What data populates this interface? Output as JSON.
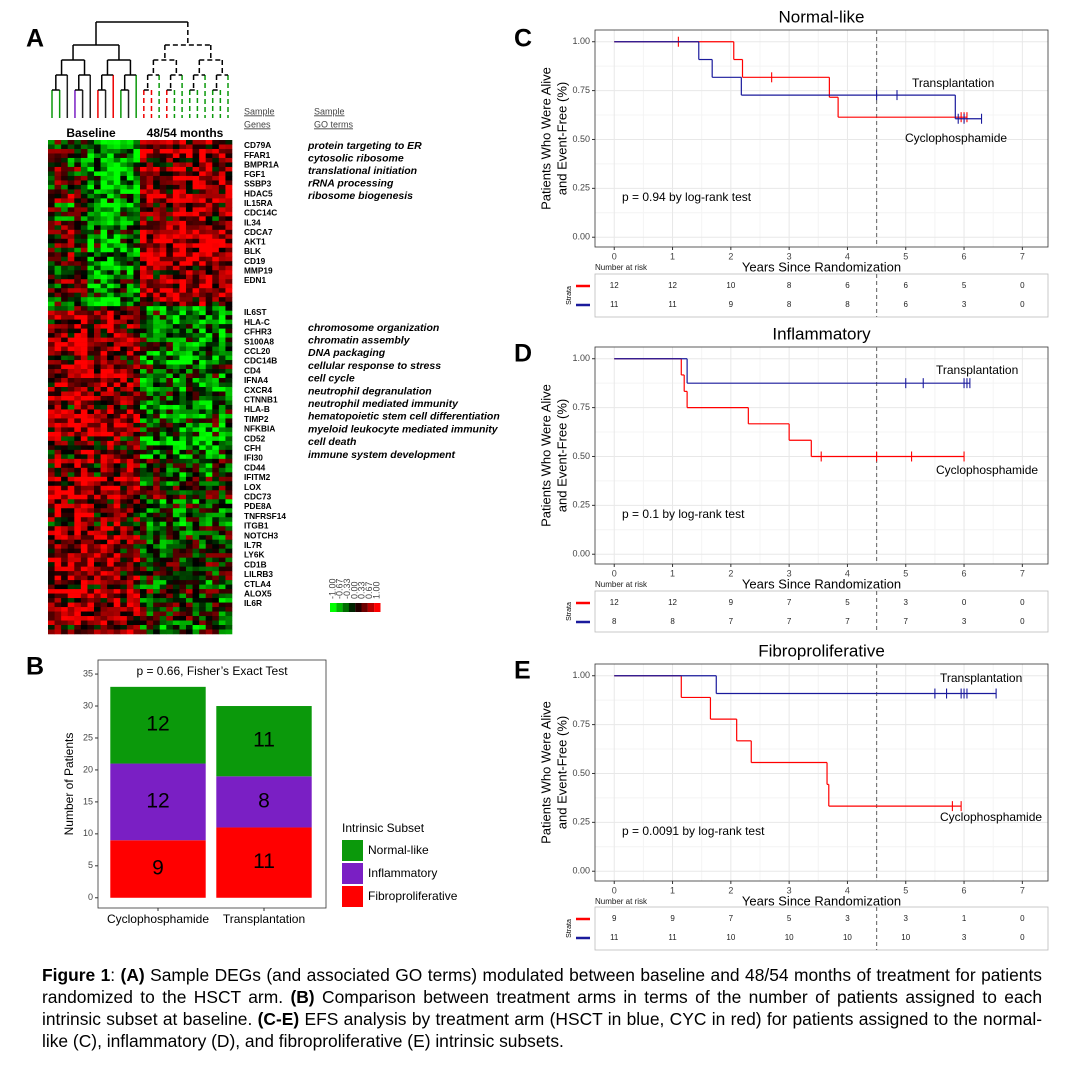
{
  "panel_labels": [
    "A",
    "B",
    "C",
    "D",
    "E"
  ],
  "heatmap": {
    "column_groups": [
      "Baseline",
      "48/54 months"
    ],
    "gene_header": [
      "Sample",
      "Genes"
    ],
    "go_header": [
      "Sample",
      "GO terms"
    ],
    "genes_top": [
      "CD79A",
      "FFAR1",
      "BMPR1A",
      "FGF1",
      "SSBP3",
      "HDAC5",
      "IL15RA",
      "CDC14C",
      "IL34",
      "CDCA7",
      "AKT1",
      "BLK",
      "CD19",
      "MMP19",
      "EDN1"
    ],
    "genes_bottom": [
      "IL6ST",
      "HLA-C",
      "CFHR3",
      "S100A8",
      "CCL20",
      "CDC14B",
      "CD4",
      "IFNA4",
      "CXCR4",
      "CTNNB1",
      "HLA-B",
      "TIMP2",
      "NFKBIA",
      "CD52",
      "CFH",
      "IFI30",
      "CD44",
      "IFITM2",
      "LOX",
      "CDC73",
      "PDE8A",
      "TNFRSF14",
      "ITGB1",
      "NOTCH3",
      "IL7R",
      "LY6K",
      "CD1B",
      "LILRB3",
      "CTLA4",
      "ALOX5",
      "IL6R"
    ],
    "go_top": [
      "protein targeting to ER",
      "cytosolic ribosome",
      "translational initiation",
      "rRNA processing",
      "ribosome biogenesis"
    ],
    "go_bottom": [
      "chromosome organization",
      "chromatin assembly",
      "DNA packaging",
      "cellular response to stress",
      "cell cycle",
      "neutrophil degranulation",
      "neutrophil mediated immunity",
      "hematopoietic stem cell differentiation",
      "myeloid leukocyte mediated immunity",
      "cell death",
      "immune system development"
    ],
    "color_key_ticks": [
      {
        "value": -1,
        "label": "-1.00"
      },
      {
        "value": -0.67,
        "label": "-0.67"
      },
      {
        "value": -0.33,
        "label": "-0.33"
      },
      {
        "value": 0,
        "label": "0.00"
      },
      {
        "value": 0.33,
        "label": "0.33"
      },
      {
        "value": 0.67,
        "label": "0.67"
      },
      {
        "value": 1,
        "label": "1.00"
      }
    ]
  },
  "chart_data": [
    {
      "type": "bar",
      "stacked": true,
      "title": "p = 0.66, Fisher’s Exact Test",
      "categories": [
        "Cyclophosphamide",
        "Transplantation"
      ],
      "series": [
        {
          "name": "Fibroproliferative",
          "color": "#ff0000",
          "values": [
            9,
            11
          ]
        },
        {
          "name": "Inflammatory",
          "color": "#7a1fc4",
          "values": [
            12,
            8
          ]
        },
        {
          "name": "Normal-like",
          "color": "#0b990b",
          "values": [
            12,
            11
          ]
        }
      ],
      "ylabel": "Number of Patients",
      "legend_title": "Intrinsic Subset",
      "ylim": [
        -1.6,
        37.2
      ],
      "yticks": [
        0,
        5,
        10,
        15,
        20,
        25,
        30,
        35
      ]
    },
    {
      "type": "survival",
      "title": "Normal-like",
      "xlabel": "Years Since Randomization",
      "ylabel": [
        "Patients Who Were Alive",
        "and Event-Free (%)"
      ],
      "annotation": "p = 0.94 by log-rank test",
      "xlim": [
        -0.33,
        7.44
      ],
      "ylim": [
        -0.05,
        1.06
      ],
      "xticks": [
        0,
        1,
        2,
        3,
        4,
        5,
        6,
        7
      ],
      "yticks": [
        {
          "value": 0,
          "label": "0.00"
        },
        {
          "value": 0.25,
          "label": "0.25"
        },
        {
          "value": 0.5,
          "label": "0.50"
        },
        {
          "value": 0.75,
          "label": "0.75"
        },
        {
          "value": 1,
          "label": "1.00"
        }
      ],
      "grid": true,
      "vline": 4.5,
      "series": [
        {
          "name": "Cyclophosphamide",
          "color": "#ff0000",
          "x": [
            0,
            2.05,
            2.2,
            3.69,
            3.84
          ],
          "values": [
            1,
            0.909,
            0.818,
            0.716,
            0.614
          ],
          "censor_x": [
            1.1,
            2.7,
            5.95,
            6.0,
            6.05
          ],
          "censor_values": [
            1,
            0.818,
            0.614,
            0.614,
            0.614
          ]
        },
        {
          "name": "Transplantation",
          "color": "#1a1a9c",
          "x": [
            0,
            1.45,
            1.68,
            2.18,
            5.85
          ],
          "values": [
            1,
            0.909,
            0.818,
            0.727,
            0.606
          ],
          "censor_x": [
            4.5,
            4.85,
            5.9,
            6.0,
            6.3
          ],
          "censor_values": [
            0.727,
            0.727,
            0.606,
            0.606,
            0.606
          ]
        }
      ],
      "risk_table": {
        "title": "Number at risk",
        "ylabel": "Strata",
        "rows": [
          [
            12,
            12,
            10,
            8,
            6,
            6,
            5,
            0
          ],
          [
            11,
            11,
            9,
            8,
            8,
            6,
            3,
            0
          ]
        ]
      }
    },
    {
      "type": "survival",
      "title": "Inflammatory",
      "xlabel": "Years Since Randomization",
      "ylabel": [
        "Patients Who Were Alive",
        "and Event-Free (%)"
      ],
      "annotation": "p = 0.1 by log-rank test",
      "xlim": [
        -0.33,
        7.44
      ],
      "ylim": [
        -0.05,
        1.06
      ],
      "xticks": [
        0,
        1,
        2,
        3,
        4,
        5,
        6,
        7
      ],
      "yticks": [
        {
          "value": 0,
          "label": "0.00"
        },
        {
          "value": 0.25,
          "label": "0.25"
        },
        {
          "value": 0.5,
          "label": "0.50"
        },
        {
          "value": 0.75,
          "label": "0.75"
        },
        {
          "value": 1,
          "label": "1.00"
        }
      ],
      "grid": true,
      "vline": 4.5,
      "series": [
        {
          "name": "Cyclophosphamide",
          "color": "#ff0000",
          "x": [
            0,
            1.15,
            1.2,
            1.25,
            2.3,
            3.0,
            3.38
          ],
          "values": [
            1,
            0.917,
            0.833,
            0.75,
            0.667,
            0.583,
            0.5
          ],
          "censor_x": [
            3.55,
            4.5,
            5.1,
            6.0
          ],
          "censor_values": [
            0.5,
            0.5,
            0.5,
            0.5
          ]
        },
        {
          "name": "Transplantation",
          "color": "#1a1a9c",
          "x": [
            0,
            1.25
          ],
          "values": [
            1,
            0.875
          ],
          "censor_x": [
            5.0,
            5.3,
            6.0,
            6.05,
            6.1
          ],
          "censor_values": [
            0.875,
            0.875,
            0.875,
            0.875,
            0.875
          ]
        }
      ],
      "risk_table": {
        "title": "Number at risk",
        "ylabel": "Strata",
        "rows": [
          [
            12,
            12,
            9,
            7,
            5,
            3,
            0,
            0
          ],
          [
            8,
            8,
            7,
            7,
            7,
            7,
            3,
            0
          ]
        ]
      }
    },
    {
      "type": "survival",
      "title": "Fibroproliferative",
      "xlabel": "Years Since Randomization",
      "ylabel": [
        "Patients Who Were Alive",
        "and Event-Free (%)"
      ],
      "annotation": "p = 0.0091 by log-rank test",
      "xlim": [
        -0.33,
        7.44
      ],
      "ylim": [
        -0.05,
        1.06
      ],
      "xticks": [
        0,
        1,
        2,
        3,
        4,
        5,
        6,
        7
      ],
      "yticks": [
        {
          "value": 0,
          "label": "0.00"
        },
        {
          "value": 0.25,
          "label": "0.25"
        },
        {
          "value": 0.5,
          "label": "0.50"
        },
        {
          "value": 0.75,
          "label": "0.75"
        },
        {
          "value": 1,
          "label": "1.00"
        }
      ],
      "grid": true,
      "vline": 4.5,
      "series": [
        {
          "name": "Cyclophosphamide",
          "color": "#ff0000",
          "x": [
            0,
            1.15,
            1.65,
            2.1,
            2.35,
            3.65,
            3.68
          ],
          "values": [
            1,
            0.889,
            0.778,
            0.667,
            0.556,
            0.444,
            0.333
          ],
          "censor_x": [
            5.8,
            5.95
          ],
          "censor_values": [
            0.333,
            0.333
          ]
        },
        {
          "name": "Transplantation",
          "color": "#1a1a9c",
          "x": [
            0,
            1.75
          ],
          "values": [
            1,
            0.909
          ],
          "censor_x": [
            5.5,
            5.7,
            5.95,
            6.0,
            6.05,
            6.55
          ],
          "censor_values": [
            0.909,
            0.909,
            0.909,
            0.909,
            0.909,
            0.909
          ]
        }
      ],
      "risk_table": {
        "title": "Number at risk",
        "ylabel": "Strata",
        "rows": [
          [
            9,
            9,
            7,
            5,
            3,
            3,
            1,
            0
          ],
          [
            11,
            11,
            10,
            10,
            10,
            10,
            3,
            0
          ]
        ]
      }
    }
  ],
  "caption": {
    "parts": [
      {
        "text": "Figure 1",
        "bold": true
      },
      {
        "text": ": ",
        "bold": false
      },
      {
        "text": "(A)",
        "bold": true
      },
      {
        "text": " Sample DEGs (and associated GO terms) modulated between baseline and 48/54 months of treatment for patients randomized to the HSCT arm. ",
        "bold": false
      },
      {
        "text": "(B)",
        "bold": true
      },
      {
        "text": " Comparison between treatment arms in terms of the number of patients assigned to each intrinsic subset at baseline. ",
        "bold": false
      },
      {
        "text": "(C-E)",
        "bold": true
      },
      {
        "text": " EFS analysis by treatment arm (HSCT in blue, CYC in red) for patients assigned to the normal-like (C), inflammatory (D), and fibroproliferative (E) intrinsic subsets.",
        "bold": false
      }
    ]
  }
}
